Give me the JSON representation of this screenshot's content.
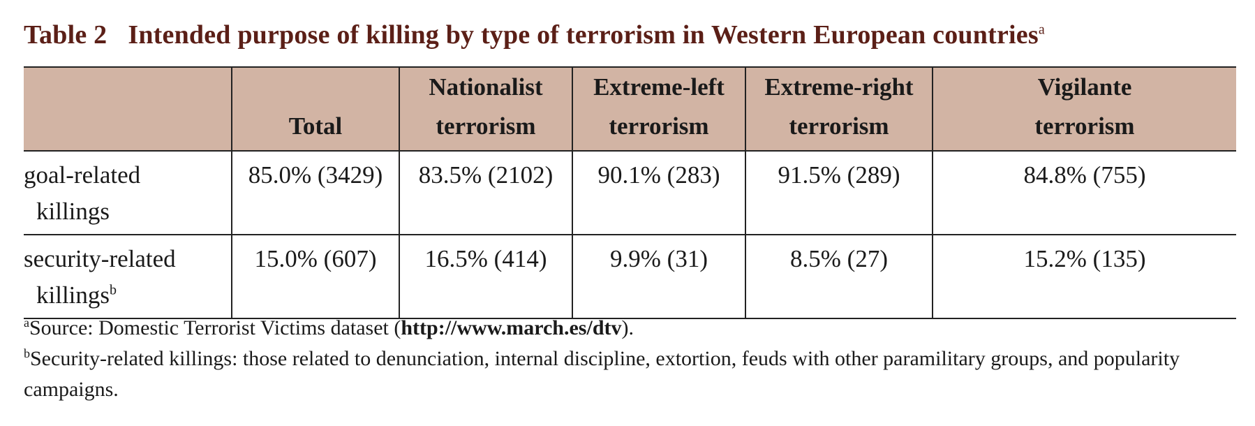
{
  "table": {
    "title_number": "Table 2",
    "title_text": "Intended purpose of killing by type of terrorism in Western European countries",
    "title_marker": "a",
    "headers": [
      {
        "line1": "",
        "line2": ""
      },
      {
        "line1": "",
        "line2": "Total"
      },
      {
        "line1": "Nationalist",
        "line2": "terrorism"
      },
      {
        "line1": "Extreme-left",
        "line2": "terrorism"
      },
      {
        "line1": "Extreme-right",
        "line2": "terrorism"
      },
      {
        "line1": "Vigilante",
        "line2": "terrorism"
      }
    ],
    "rows": [
      {
        "label_line1": "goal-related",
        "label_line2": "killings",
        "label_marker": "",
        "values": [
          "85.0% (3429)",
          "83.5% (2102)",
          "90.1% (283)",
          "91.5% (289)",
          "84.8% (755)"
        ]
      },
      {
        "label_line1": "security-related",
        "label_line2": "killings",
        "label_marker": "b",
        "values": [
          "15.0% (607)",
          "16.5% (414)",
          "9.9% (31)",
          "8.5% (27)",
          "15.2% (135)"
        ]
      }
    ]
  },
  "footnotes": {
    "a": {
      "marker": "a",
      "text_before": "Source: Domestic Terrorist Victims dataset (",
      "link": "http://www.march.es/dtv",
      "text_after": ")."
    },
    "b": {
      "marker": "b",
      "text": "Security-related killings: those related to denunciation, internal discipline, extortion, feuds with other paramilitary groups, and popularity campaigns."
    }
  },
  "colors": {
    "title": "#5b1f17",
    "header_background": "#d2b4a4",
    "rule": "#222222"
  }
}
